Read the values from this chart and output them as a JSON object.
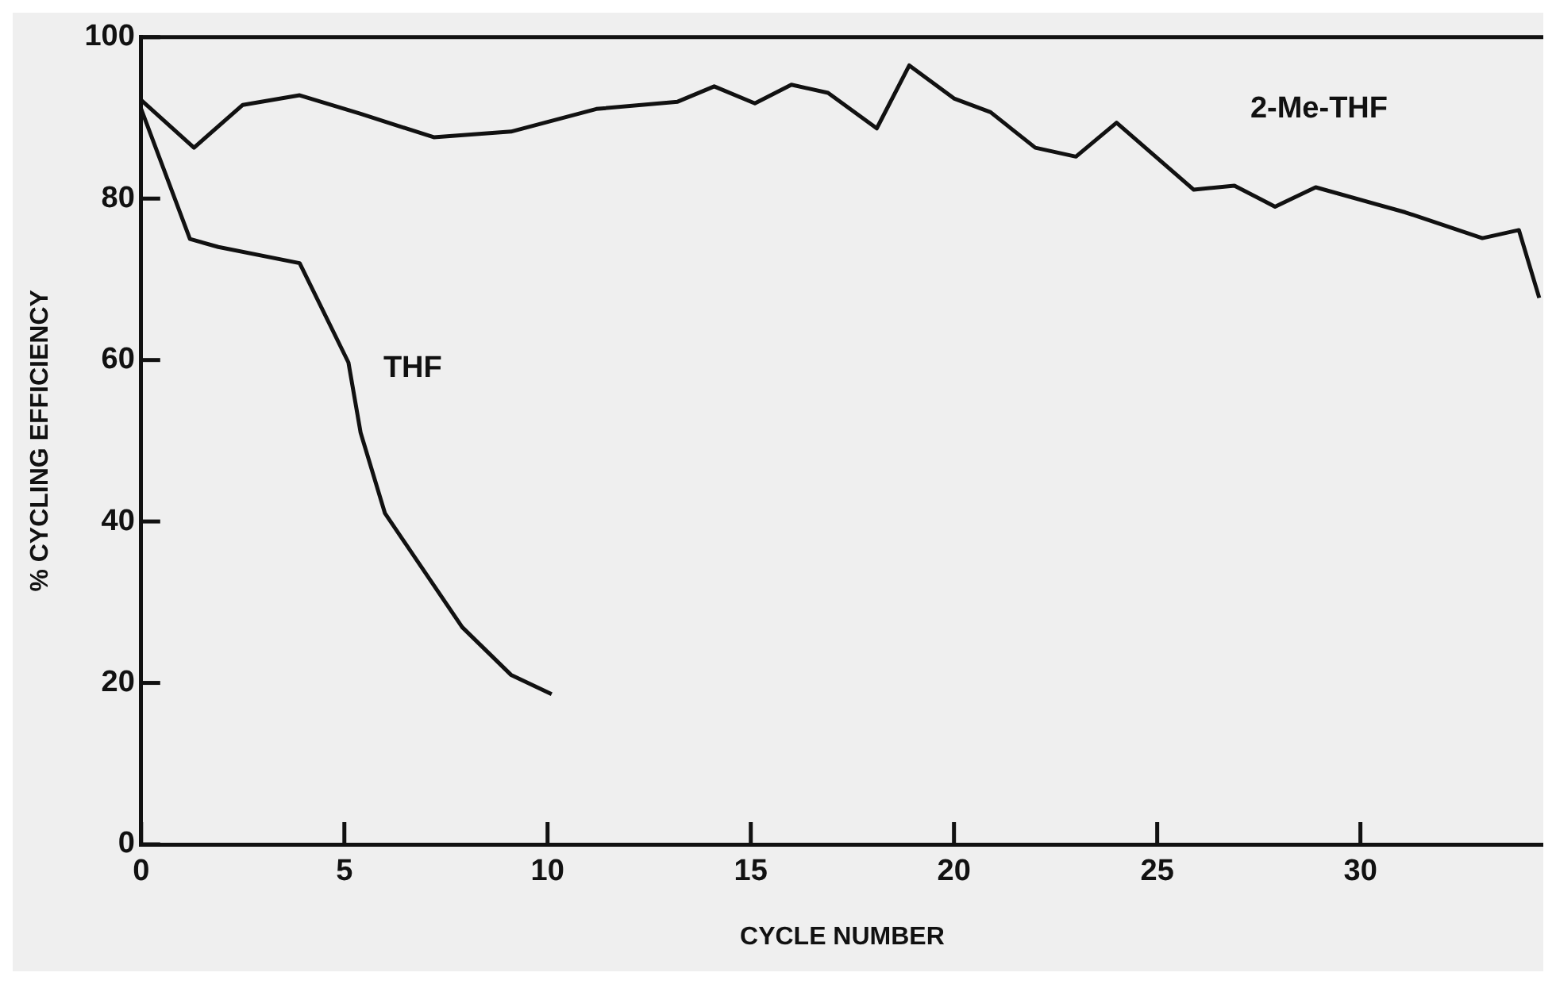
{
  "chart_data": {
    "type": "line",
    "xlabel": "CYCLE NUMBER",
    "ylabel": "% CYCLING EFFICIENCY",
    "xlim": [
      0,
      34.5
    ],
    "xticks": [
      0,
      5,
      10,
      15,
      20,
      25,
      30
    ],
    "ylim": [
      0,
      100
    ],
    "yticks": [
      0,
      20,
      40,
      60,
      80,
      100
    ],
    "grid": false,
    "legend": false,
    "marker": "none",
    "line_style": "solid",
    "series": [
      {
        "name": "2-Me-THF",
        "color": "#111111",
        "x": [
          0,
          1.3,
          2.5,
          3.9,
          5.4,
          7.2,
          9.1,
          11.2,
          13.2,
          14.1,
          15.1,
          16,
          16.9,
          18.1,
          18.9,
          20,
          20.9,
          22,
          23,
          24,
          25.9,
          26.9,
          27.9,
          28.9,
          31.1,
          33,
          33.9,
          34.4
        ],
        "values": [
          92.2,
          86.3,
          91.6,
          92.8,
          90.5,
          87.6,
          88.3,
          91.1,
          92,
          93.9,
          91.8,
          94.1,
          93.1,
          88.7,
          96.5,
          92.4,
          90.7,
          86.3,
          85.2,
          89.4,
          81.1,
          81.6,
          79,
          81.4,
          78.3,
          75.1,
          76.1,
          67.7
        ]
      },
      {
        "name": "THF",
        "color": "#111111",
        "x": [
          0,
          1.2,
          1.9,
          3.9,
          5.1,
          5.4,
          6,
          7.9,
          9.1,
          10.1
        ],
        "values": [
          91.1,
          75,
          74,
          72,
          59.7,
          51,
          41,
          26.9,
          21,
          18.6
        ]
      }
    ]
  }
}
